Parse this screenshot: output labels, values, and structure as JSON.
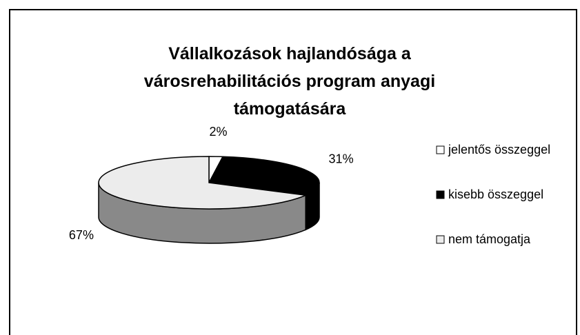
{
  "chart_data": {
    "type": "pie",
    "title": "Vállalkozások hajlandósága a városrehabilitációs program anyagi támogatására",
    "categories": [
      "jelentős összeggel",
      "kisebb összeggel",
      "nem támogatja"
    ],
    "values": [
      2,
      31,
      67
    ],
    "value_labels": [
      "2%",
      "31%",
      "67%"
    ],
    "colors": [
      "#ffffff",
      "#000000",
      "#ececec"
    ],
    "legend": "right"
  }
}
